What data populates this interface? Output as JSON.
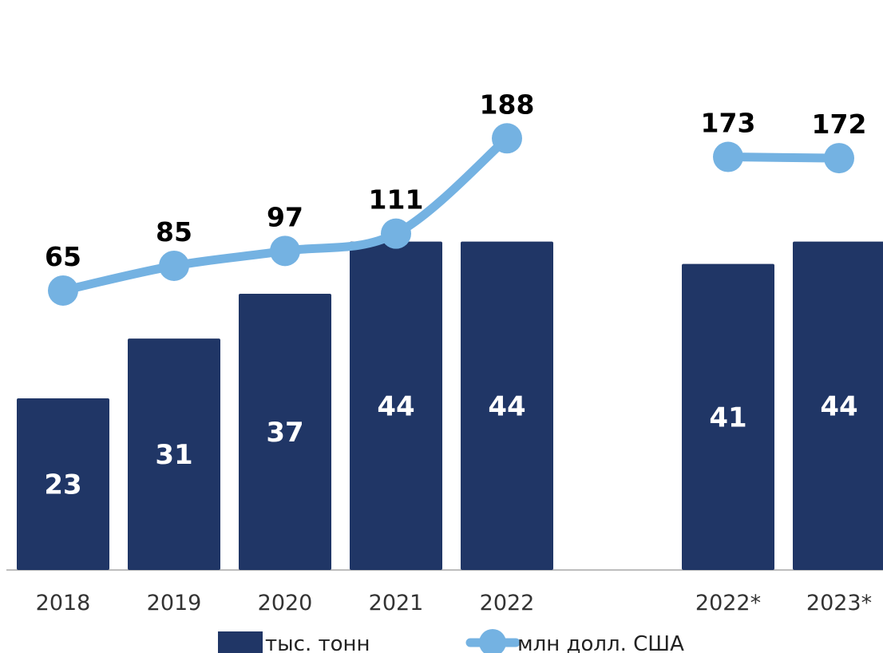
{
  "chart_data": {
    "type": "bar",
    "categories": [
      "2018",
      "2019",
      "2020",
      "2021",
      "2022",
      "2022*",
      "2023*"
    ],
    "groups": [
      [
        0,
        1,
        2,
        3,
        4
      ],
      [
        5,
        6
      ]
    ],
    "series": [
      {
        "name": "тыс. тонн",
        "type": "bar",
        "values": [
          23,
          31,
          37,
          44,
          44,
          41,
          44
        ],
        "color": "#203666"
      },
      {
        "name": "млн долл. США",
        "type": "line",
        "values": [
          65,
          85,
          97,
          111,
          188,
          173,
          172
        ],
        "color": "#74B2E2"
      }
    ],
    "legend_position": "bottom",
    "grid": false
  },
  "legend": [
    {
      "label": "тыс. тонн",
      "kind": "bar",
      "color": "#203666"
    },
    {
      "label": "млн долл. США",
      "kind": "line",
      "color": "#74B2E2"
    }
  ]
}
